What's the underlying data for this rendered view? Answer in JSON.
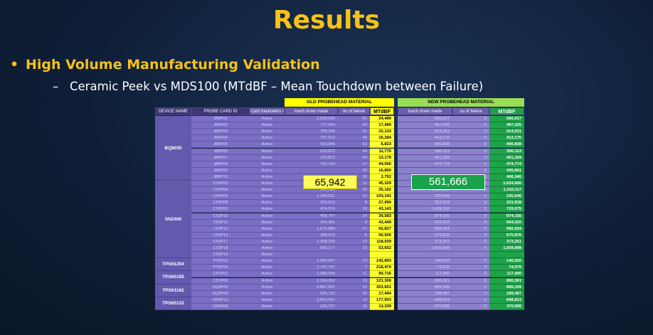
{
  "title": "Results",
  "bullet": "High Volume Manufacturing Validation",
  "subbullet": "Ceramic Peek vs MDS100 (MTdBF – Mean Touchdown between Failure)",
  "table": {
    "old_header": "OLD PROBEHEAD MATERIAL",
    "new_header": "NEW PROBEHEAD MATERIAL",
    "columns": [
      "DEVICE NAME",
      "PROBE CARD ID",
      "Card trackowkrs status",
      "touch down made",
      "no of failure",
      "MTdBF",
      "touch down made",
      "no of failure",
      "MTdBF"
    ],
    "groups": [
      {
        "device": "BQ8035",
        "rows": 10
      },
      {
        "device": "SN2400",
        "rows": 12
      },
      {
        "device": "TPS61254",
        "rows": 2
      },
      {
        "device": "TPS65195",
        "rows": 2
      },
      {
        "device": "TPS61162",
        "rows": 2
      },
      {
        "device": "TPS65132",
        "rows": 2
      }
    ],
    "rows": [
      [
        "J88P01",
        "Active",
        "1,028,555",
        "41",
        "24,489",
        "566,017",
        "0",
        "566,017"
      ],
      [
        "J88P02",
        "Active",
        "717,043",
        "40",
        "17,489",
        "497,225",
        "0",
        "497,225"
      ],
      [
        "J88P03",
        "Active",
        "708,268",
        "31",
        "22,133",
        "414,231",
        "0",
        "414,231"
      ],
      [
        "J88P04",
        "Active",
        "797,913",
        "48",
        "16,284",
        "413,175",
        "0",
        "413,175"
      ],
      [
        "J88P05",
        "Active",
        "429,846",
        "62",
        "6,823",
        "490,838",
        "0",
        "490,838"
      ],
      [
        "J88P06",
        "Active",
        "529,872",
        "44",
        "11,775",
        "560,113",
        "0",
        "560,113"
      ],
      [
        "J88P07",
        "Active",
        "724,872",
        "54",
        "13,179",
        "451,169",
        "0",
        "451,169"
      ],
      [
        "J88P08",
        "Active",
        "793,194",
        "17",
        "44,066",
        "474,774",
        "0",
        "474,774"
      ],
      [
        "J88P09",
        "Active",
        "",
        "39",
        "16,850",
        "",
        "0",
        "445,841"
      ],
      [
        "J88P10",
        "Active",
        "",
        "36",
        "2,752",
        "",
        "0",
        "406,340"
      ],
      [
        "C53P03",
        "Active",
        "543,949",
        "11",
        "45,329",
        "1,624,660",
        "0",
        "1,624,660"
      ],
      [
        "C53P04",
        "Active",
        "949,363",
        "26",
        "35,162",
        "1,310,117",
        "0",
        "1,310,117"
      ],
      [
        "C53P06",
        "Active",
        "1,340,831",
        "12",
        "103,141",
        "235,546",
        "0",
        "235,546"
      ],
      [
        "C53P08",
        "Active",
        "253,913",
        "8",
        "27,990",
        "321,918",
        "0",
        "321,918"
      ],
      [
        "C53P09",
        "Active",
        "474,574",
        "10",
        "43,143",
        "1,458,150",
        "1",
        "729,075"
      ],
      [
        "C53P10",
        "Active",
        "458,747",
        "14",
        "30,583",
        "874,156",
        "0",
        "874,156"
      ],
      [
        "C53P11",
        "Active",
        "434,491",
        "9",
        "43,449",
        "504,520",
        "0",
        "504,520"
      ],
      [
        "C53P12",
        "Active",
        "1,670,889",
        "17",
        "92,827",
        "582,024",
        "0",
        "582,024"
      ],
      [
        "C53P13",
        "Active",
        "398,479",
        "6",
        "56,926",
        "670,876",
        "0",
        "670,876"
      ],
      [
        "C53P17",
        "Active",
        "1,308,330",
        "10",
        "118,939",
        "373,251",
        "0",
        "373,251"
      ],
      [
        "C53P18",
        "Active",
        "590,177",
        "10",
        "53,652",
        "1,009,908",
        "0",
        "1,009,908"
      ],
      [
        "C53P19",
        "Active",
        "",
        "",
        "",
        "",
        "",
        ""
      ],
      [
        "PT6P01",
        "Active",
        "2,000,507",
        "13",
        "142,893",
        "146,020",
        "0",
        "146,020"
      ],
      [
        "PT6P04",
        "Active",
        "1,747,757",
        "7",
        "218,470",
        "74,576",
        "0",
        "74,576"
      ],
      [
        "C57P01",
        "Active",
        "1,088,594",
        "11",
        "90,716",
        "117,490",
        "0",
        "117,490"
      ],
      [
        "C57P06",
        "Active",
        "1,334,362",
        "10",
        "121,306",
        "890,361",
        "0",
        "890,361"
      ],
      [
        "DQ6P02",
        "Active",
        "4,857,621",
        "15",
        "303,601",
        "895,109",
        "0",
        "895,109"
      ],
      [
        "DQ6P03",
        "Active",
        "699,752",
        "39",
        "17,494",
        "189,487",
        "0",
        "189,487"
      ],
      [
        "DR6P13",
        "Active",
        "3,550,061",
        "19",
        "177,503",
        "648,813",
        "0",
        "648,813"
      ],
      [
        "DR6P06",
        "Active",
        "226,757",
        "16",
        "13,339",
        "370,695",
        "0",
        "370,695"
      ]
    ]
  },
  "callouts": {
    "old_mtdbf": "65,942",
    "new_mtdbf": "561,666"
  }
}
